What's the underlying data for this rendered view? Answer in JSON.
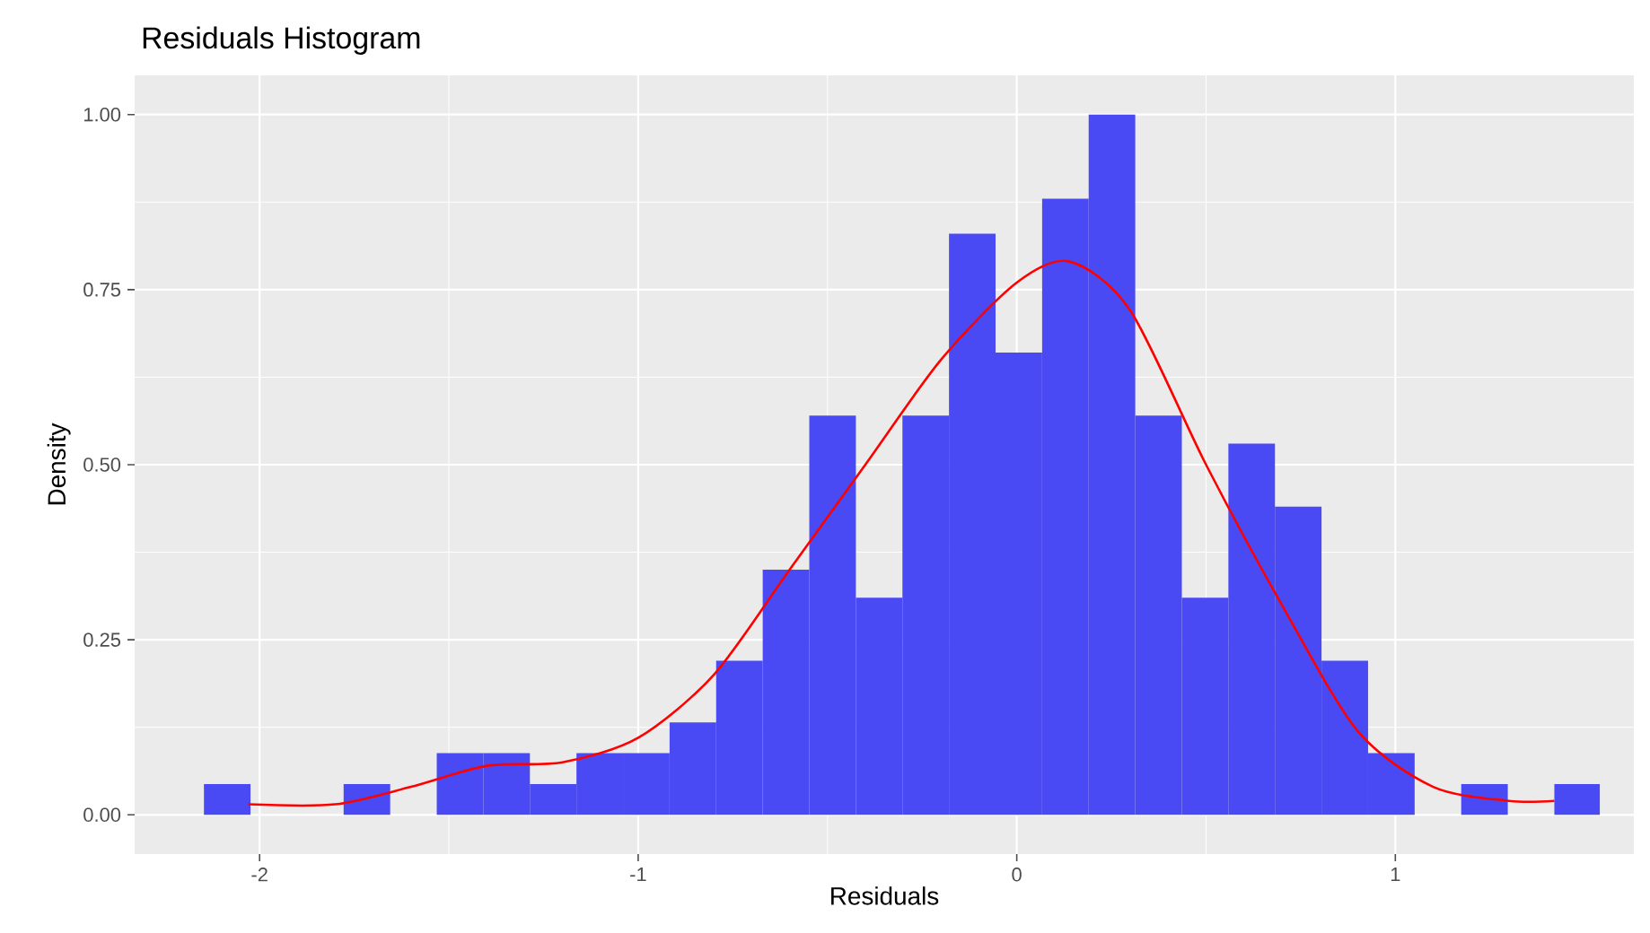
{
  "chart_data": {
    "type": "histogram",
    "title": "Residuals Histogram",
    "xlabel": "Residuals",
    "ylabel": "Density",
    "xlim": [
      -2.33,
      1.63
    ],
    "ylim": [
      -0.056,
      1.056
    ],
    "xticks": [
      -2,
      -1,
      0,
      1
    ],
    "yticks": [
      {
        "value": 0,
        "label": "0.00"
      },
      {
        "value": 0.25,
        "label": "0.25"
      },
      {
        "value": 0.5,
        "label": "0.50"
      },
      {
        "value": 0.75,
        "label": "0.75"
      },
      {
        "value": 1,
        "label": "1.00"
      }
    ],
    "grid": true,
    "series": [
      {
        "color": "#4a4af5",
        "bins": [
          -2.147,
          -2.024,
          -1.778,
          -1.655,
          -1.532,
          -1.409,
          -1.286,
          -1.163,
          -1.04,
          -0.917,
          -0.794,
          -0.671,
          -0.548,
          -0.425,
          -0.302,
          -0.179,
          -0.056,
          0.067,
          0.19,
          0.313,
          0.436,
          0.559,
          0.682,
          0.805,
          0.928,
          1.051,
          1.174,
          1.297,
          1.42,
          1.54
        ],
        "values": [
          0.044,
          0,
          0.044,
          0,
          0.088,
          0.088,
          0.044,
          0.088,
          0.088,
          0.132,
          0.22,
          0.35,
          0.57,
          0.31,
          0.57,
          0.83,
          0.66,
          0.88,
          1.0,
          0.57,
          0.31,
          0.53,
          0.44,
          0.22,
          0.088,
          0,
          0.044,
          0,
          0.044
        ]
      },
      {
        "type": "line",
        "color": "#ff0000",
        "x": [
          -2.03,
          -1.8,
          -1.6,
          -1.4,
          -1.2,
          -1.0,
          -0.8,
          -0.6,
          -0.4,
          -0.2,
          0,
          0.14,
          0.3,
          0.5,
          0.7,
          0.9,
          1.1,
          1.3,
          1.42
        ],
        "values": [
          0.015,
          0.015,
          0.04,
          0.07,
          0.075,
          0.11,
          0.2,
          0.35,
          0.5,
          0.65,
          0.76,
          0.79,
          0.72,
          0.5,
          0.3,
          0.12,
          0.04,
          0.02,
          0.02
        ]
      }
    ]
  }
}
